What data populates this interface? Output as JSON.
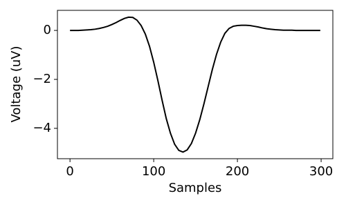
{
  "chart_data": {
    "type": "line",
    "xlabel": "Samples",
    "ylabel": "Voltage (uV)",
    "x": [
      0,
      5,
      10,
      15,
      20,
      25,
      30,
      35,
      40,
      45,
      50,
      55,
      60,
      65,
      70,
      75,
      80,
      85,
      90,
      95,
      100,
      105,
      110,
      115,
      120,
      125,
      130,
      135,
      140,
      145,
      150,
      155,
      160,
      165,
      170,
      175,
      180,
      185,
      190,
      195,
      200,
      205,
      210,
      215,
      220,
      225,
      230,
      235,
      240,
      245,
      250,
      255,
      260,
      265,
      270,
      275,
      280,
      285,
      290,
      295,
      299
    ],
    "series": [
      {
        "color": "#000000",
        "values": [
          0,
          0,
          0,
          0.01,
          0.02,
          0.03,
          0.05,
          0.08,
          0.12,
          0.17,
          0.24,
          0.32,
          0.41,
          0.49,
          0.54,
          0.53,
          0.42,
          0.2,
          -0.15,
          -0.65,
          -1.3,
          -2.05,
          -2.85,
          -3.6,
          -4.2,
          -4.65,
          -4.9,
          -4.97,
          -4.88,
          -4.62,
          -4.2,
          -3.65,
          -3.0,
          -2.3,
          -1.6,
          -0.98,
          -0.48,
          -0.12,
          0.08,
          0.17,
          0.2,
          0.21,
          0.21,
          0.2,
          0.17,
          0.14,
          0.1,
          0.07,
          0.05,
          0.03,
          0.02,
          0.01,
          0.01,
          0.01,
          0,
          0,
          0,
          0,
          0,
          0,
          0
        ]
      }
    ],
    "xlim": [
      -15,
      314
    ],
    "ylim": [
      -5.24,
      0.82
    ],
    "xticks": [
      0,
      100,
      200,
      300
    ],
    "yticks": [
      0,
      {
        "value": -2,
        "label": "−2"
      },
      {
        "value": -4,
        "label": "−4"
      }
    ]
  }
}
